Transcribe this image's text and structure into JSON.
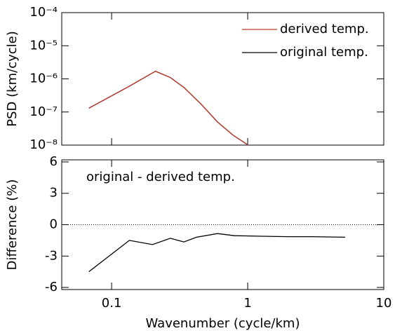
{
  "chart_data": [
    {
      "type": "line",
      "xlog": true,
      "ylog": true,
      "ylabel": "PSD (km/cycle)",
      "xlim": [
        0.043,
        10
      ],
      "xticks": [
        0.1,
        1,
        10
      ],
      "ylim": [
        1e-08,
        0.0001
      ],
      "yticks": [
        {
          "value": 1e-08,
          "label": "10⁻⁸"
        },
        {
          "value": 1e-07,
          "label": "10⁻⁷"
        },
        {
          "value": 1e-06,
          "label": "10⁻⁶"
        },
        {
          "value": 1e-05,
          "label": "10⁻⁵"
        },
        {
          "value": 0.0001,
          "label": "10⁻⁴"
        }
      ],
      "legend": "upper right",
      "series": [
        {
          "name": "derived temp.",
          "color": "#c0392b",
          "x": [
            0.068,
            0.135,
            0.21,
            0.27,
            0.34,
            0.45,
            0.6,
            0.78,
            1.05
          ],
          "values": [
            1.3e-07,
            6e-07,
            1.7e-06,
            1.1e-06,
            5.5e-07,
            1.8e-07,
            5e-08,
            2e-08,
            9e-09
          ]
        },
        {
          "name": "original temp.",
          "color": "#000000",
          "x": [
            0.068,
            0.135,
            0.21,
            0.27,
            0.34,
            0.45,
            0.6,
            0.78,
            1.05
          ],
          "values": [
            1.3e-07,
            6e-07,
            1.7e-06,
            1.1e-06,
            5.5e-07,
            1.8e-07,
            5e-08,
            2e-08,
            9e-09
          ]
        }
      ]
    },
    {
      "type": "line",
      "xlog": true,
      "ylog": false,
      "ylabel": "Difference (%)",
      "xlabel": "Wavenumber (cycle/km)",
      "annotation": "original - derived temp.",
      "xlim": [
        0.043,
        10
      ],
      "xticks": [
        0.1,
        1,
        10
      ],
      "xtick_labels": true,
      "ylim": [
        -6.2,
        6.2
      ],
      "yticks": [
        -6,
        -3,
        0,
        3,
        6
      ],
      "reference_line": 0,
      "series": [
        {
          "color": "#000000",
          "x": [
            0.068,
            0.135,
            0.2,
            0.27,
            0.34,
            0.42,
            0.6,
            0.8,
            1.2,
            2,
            3,
            5.2
          ],
          "values": [
            -4.5,
            -1.5,
            -1.9,
            -1.3,
            -1.65,
            -1.2,
            -0.85,
            -1.05,
            -1.1,
            -1.15,
            -1.15,
            -1.2
          ]
        }
      ]
    }
  ]
}
